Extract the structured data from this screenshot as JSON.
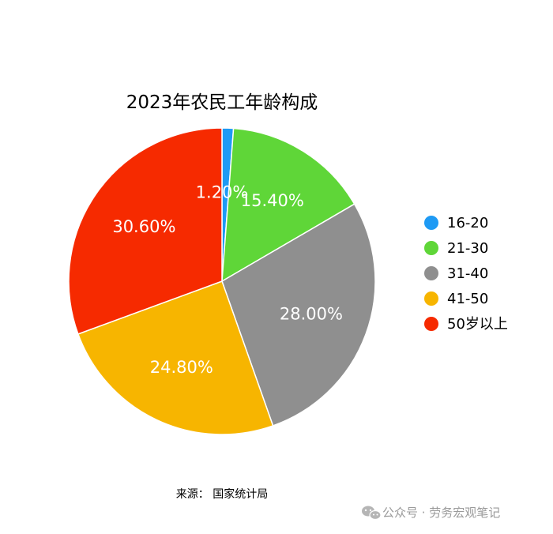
{
  "chart_data": {
    "type": "pie",
    "title": "2023年农民工年龄构成",
    "categories": [
      "16-20",
      "21-30",
      "31-40",
      "41-50",
      "50岁以上"
    ],
    "values": [
      1.2,
      15.4,
      28.0,
      24.8,
      30.6
    ],
    "data_labels": [
      "1.20%",
      "15.40%",
      "28.00%",
      "24.80%",
      "30.60%"
    ],
    "colors": [
      "#1e9af4",
      "#5fd638",
      "#8f8f8f",
      "#f7b500",
      "#f62a00"
    ],
    "legend_position": "right",
    "start_angle": "12 o'clock",
    "direction": "clockwise"
  },
  "source": "来源：  国家统计局",
  "watermark": {
    "icon": "wechat-icon",
    "text": "公众号 · 劳务宏观笔记"
  }
}
